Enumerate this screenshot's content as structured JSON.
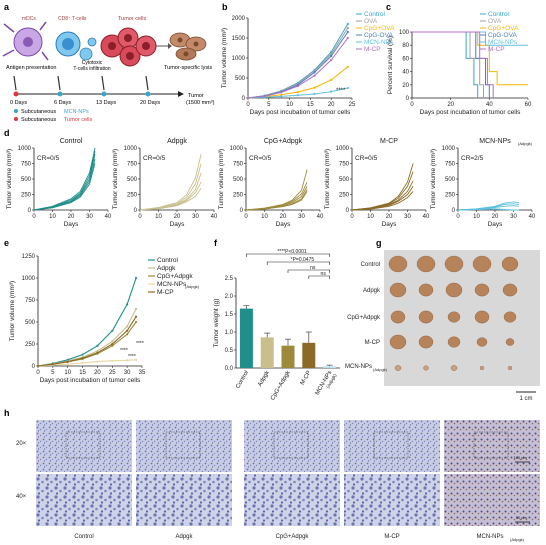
{
  "panel_labels": {
    "a": "a",
    "b": "b",
    "c": "c",
    "d": "d",
    "e": "e",
    "f": "f",
    "g": "g",
    "h": "h"
  },
  "schematic": {
    "mdcs": "mDCs",
    "tcells": "CD8⁺ T-cells",
    "tumor_cells": "Tumor cells",
    "antigen": "Antigen presentation",
    "cytotoxic": "Cytotoxic\nT-cells infiltration",
    "lysis": "Tumor-specific lysis",
    "timeline": [
      "0 Days",
      "6 Days",
      "13 Days",
      "20 Days"
    ],
    "endpoint": "Tumor",
    "endpoint_vol": "(1500 mm³)",
    "legend1_label": "Subcutaneous",
    "legend1_item": "MCN-NPs",
    "legend2_label": "Subcutaneous",
    "legend2_item": "Tumor cells"
  },
  "colors": {
    "control": "#3aa6c9",
    "ova": "#a0a0a0",
    "cpg_ova": "#f5b700",
    "cpgova": "#4a7fc1",
    "mcn": "#5ec0e0",
    "mcp": "#b070c0",
    "e_control": "#1f8f8a",
    "e_adpgk": "#c8bf8c",
    "e_cpg": "#9c8a3a",
    "e_mcn": "#e6d7a2",
    "e_mcp": "#8a6a26"
  },
  "legend_b": [
    "Control",
    "OVA",
    "CpG+OVA",
    "CpG-OVA",
    "MCN-NPs",
    "M-CP"
  ],
  "legend_e": [
    "Control",
    "Adpgk",
    "CpG+Adpgk",
    "MCN-NPs",
    "M-CP"
  ],
  "legend_e_sub": "(Adpgk)",
  "d_titles": [
    "Control",
    "Adpgk",
    "CpG+Adpgk",
    "M-CP",
    "MCN-NPs"
  ],
  "d_title_sub": "(Adpgk)",
  "d_cr": [
    "CR=0/5",
    "CR=0/5",
    "CR=0/5",
    "CR=0/5",
    "CR=2/5"
  ],
  "f_categories": [
    "Control",
    "Adpgk",
    "CpG+Adpgk",
    "M-CP",
    "MCN-NPs"
  ],
  "f_last_sub": "(Adpgk)",
  "f_sig": [
    "****P<0.0001",
    "*P=0.0475",
    "ns",
    "ns"
  ],
  "g_rows": [
    "Control",
    "Adpgk",
    "CpG+Adpgk",
    "M-CP",
    "MCN-NPs"
  ],
  "g_rows_sub": "(Adpgk)",
  "g_scale": "1 cm",
  "h_rows": [
    "20×",
    "40×"
  ],
  "h_cols": [
    "Control",
    "Adpgk",
    "CpG+Adpgk",
    "M-CP",
    "MCN-NPs"
  ],
  "h_last_sub": "(Adpgk)",
  "h_scale1": "100 μm",
  "h_scale2": "50 μm",
  "chart_data": [
    {
      "id": "b",
      "type": "line",
      "xlabel": "Days post incubation of tumor cells",
      "ylabel": "Tumor volume (mm³)",
      "xlim": [
        0,
        25
      ],
      "ylim": [
        0,
        2000
      ],
      "xticks": [
        0,
        5,
        10,
        15,
        20,
        25
      ],
      "yticks": [
        0,
        500,
        1000,
        1500,
        2000
      ],
      "annotation": "****",
      "series": [
        {
          "name": "Control",
          "x": [
            0,
            4,
            8,
            12,
            16,
            20,
            24
          ],
          "y": [
            0,
            60,
            180,
            380,
            700,
            1150,
            1850
          ]
        },
        {
          "name": "OVA",
          "x": [
            0,
            4,
            8,
            12,
            16,
            20,
            24
          ],
          "y": [
            0,
            55,
            170,
            360,
            680,
            1100,
            1750
          ]
        },
        {
          "name": "CpG+OVA",
          "x": [
            0,
            4,
            8,
            12,
            16,
            20,
            24
          ],
          "y": [
            0,
            30,
            80,
            150,
            260,
            450,
            780
          ]
        },
        {
          "name": "CpG-OVA",
          "x": [
            0,
            4,
            8,
            12,
            16,
            20,
            24
          ],
          "y": [
            0,
            50,
            150,
            330,
            640,
            1050,
            1650
          ]
        },
        {
          "name": "MCN-NPs",
          "x": [
            0,
            4,
            8,
            12,
            16,
            20,
            24
          ],
          "y": [
            0,
            20,
            40,
            70,
            100,
            160,
            250
          ]
        },
        {
          "name": "M-CP",
          "x": [
            0,
            4,
            8,
            12,
            16,
            20,
            24
          ],
          "y": [
            0,
            45,
            140,
            300,
            560,
            950,
            1500
          ]
        }
      ]
    },
    {
      "id": "c",
      "type": "line",
      "xlabel": "Days post incubation of tumor cells",
      "ylabel": "Percent survival (%)",
      "xlim": [
        0,
        60
      ],
      "ylim": [
        0,
        100
      ],
      "xticks": [
        0,
        20,
        40,
        60
      ],
      "yticks": [
        0,
        20,
        40,
        60,
        80,
        100
      ],
      "series": [
        {
          "name": "Control",
          "x": [
            0,
            28,
            28,
            32,
            32,
            34,
            34
          ],
          "y": [
            100,
            100,
            60,
            60,
            20,
            20,
            0
          ]
        },
        {
          "name": "OVA",
          "x": [
            0,
            30,
            30,
            35,
            35,
            37,
            37
          ],
          "y": [
            100,
            100,
            60,
            60,
            20,
            20,
            0
          ]
        },
        {
          "name": "CpG+OVA",
          "x": [
            0,
            34,
            34,
            40,
            40,
            44,
            44,
            60
          ],
          "y": [
            100,
            100,
            80,
            80,
            40,
            40,
            20,
            20
          ]
        },
        {
          "name": "CpG-OVA",
          "x": [
            0,
            33,
            33,
            38,
            38,
            40,
            40
          ],
          "y": [
            100,
            100,
            60,
            60,
            20,
            20,
            0
          ]
        },
        {
          "name": "MCN-NPs",
          "x": [
            0,
            38,
            38,
            60
          ],
          "y": [
            100,
            100,
            80,
            80
          ]
        },
        {
          "name": "M-CP",
          "x": [
            0,
            35,
            35,
            39,
            39,
            42,
            42
          ],
          "y": [
            100,
            100,
            60,
            60,
            20,
            20,
            0
          ]
        }
      ]
    },
    {
      "id": "d",
      "type": "line",
      "xlabel": "Days",
      "ylabel": "Tumor volume (mm³)",
      "xlim": [
        0,
        40
      ],
      "ylim": [
        0,
        1000
      ],
      "xticks": [
        0,
        10,
        20,
        30,
        40
      ],
      "yticks": [
        0,
        250,
        500,
        750,
        1000
      ],
      "panels": [
        {
          "name": "Control",
          "curves": [
            {
              "x": [
                0,
                10,
                20,
                25,
                30,
                33
              ],
              "y": [
                0,
                60,
                180,
                300,
                600,
                1000
              ]
            },
            {
              "x": [
                0,
                10,
                20,
                25,
                30,
                33
              ],
              "y": [
                0,
                50,
                160,
                270,
                550,
                950
              ]
            },
            {
              "x": [
                0,
                10,
                20,
                25,
                30,
                33
              ],
              "y": [
                0,
                45,
                140,
                250,
                500,
                900
              ]
            },
            {
              "x": [
                0,
                10,
                20,
                25,
                30,
                33
              ],
              "y": [
                0,
                40,
                130,
                230,
                460,
                820
              ]
            },
            {
              "x": [
                0,
                10,
                20,
                25,
                30,
                33
              ],
              "y": [
                0,
                35,
                120,
                210,
                420,
                750
              ]
            }
          ]
        },
        {
          "name": "Adpgk",
          "curves": [
            {
              "x": [
                0,
                10,
                20,
                25,
                30,
                33
              ],
              "y": [
                0,
                40,
                120,
                240,
                520,
                900
              ]
            },
            {
              "x": [
                0,
                10,
                20,
                25,
                30,
                33
              ],
              "y": [
                0,
                35,
                100,
                200,
                420,
                750
              ]
            },
            {
              "x": [
                0,
                10,
                20,
                25,
                30,
                33
              ],
              "y": [
                0,
                30,
                90,
                170,
                330,
                600
              ]
            },
            {
              "x": [
                0,
                10,
                20,
                25,
                30,
                33
              ],
              "y": [
                0,
                25,
                80,
                150,
                280,
                450
              ]
            },
            {
              "x": [
                0,
                10,
                20,
                25,
                30,
                33
              ],
              "y": [
                0,
                20,
                70,
                130,
                220,
                350
              ]
            }
          ]
        },
        {
          "name": "CpG+Adpgk",
          "curves": [
            {
              "x": [
                0,
                10,
                20,
                25,
                30,
                33
              ],
              "y": [
                0,
                30,
                90,
                160,
                320,
                650
              ]
            },
            {
              "x": [
                0,
                10,
                20,
                25,
                30,
                33
              ],
              "y": [
                0,
                25,
                80,
                140,
                260,
                450
              ]
            },
            {
              "x": [
                0,
                10,
                20,
                25,
                30,
                33
              ],
              "y": [
                0,
                20,
                70,
                120,
                220,
                380
              ]
            },
            {
              "x": [
                0,
                10,
                20,
                25,
                30,
                33
              ],
              "y": [
                0,
                18,
                60,
                100,
                180,
                330
              ]
            },
            {
              "x": [
                0,
                10,
                20,
                25,
                30,
                33
              ],
              "y": [
                0,
                15,
                55,
                90,
                160,
                300
              ]
            }
          ]
        },
        {
          "name": "M-CP",
          "curves": [
            {
              "x": [
                0,
                10,
                20,
                25,
                30,
                33
              ],
              "y": [
                0,
                35,
                110,
                220,
                450,
                750
              ]
            },
            {
              "x": [
                0,
                10,
                20,
                25,
                30,
                33
              ],
              "y": [
                0,
                30,
                100,
                190,
                380,
                620
              ]
            },
            {
              "x": [
                0,
                10,
                20,
                25,
                30,
                33
              ],
              "y": [
                0,
                25,
                85,
                160,
                300,
                470
              ]
            },
            {
              "x": [
                0,
                10,
                20,
                25,
                30,
                33
              ],
              "y": [
                0,
                20,
                75,
                140,
                250,
                380
              ]
            },
            {
              "x": [
                0,
                10,
                20,
                25,
                30,
                33
              ],
              "y": [
                0,
                15,
                60,
                110,
                200,
                300
              ]
            }
          ]
        },
        {
          "name": "MCN-NPs",
          "curves": [
            {
              "x": [
                0,
                10,
                20,
                25,
                30,
                33
              ],
              "y": [
                0,
                20,
                60,
                110,
                130,
                120
              ]
            },
            {
              "x": [
                0,
                10,
                20,
                25,
                30,
                33
              ],
              "y": [
                0,
                15,
                50,
                90,
                100,
                90
              ]
            },
            {
              "x": [
                0,
                10,
                20,
                25,
                30,
                33
              ],
              "y": [
                0,
                12,
                40,
                60,
                70,
                60
              ]
            },
            {
              "x": [
                0,
                10,
                20,
                25,
                30,
                33
              ],
              "y": [
                0,
                10,
                20,
                10,
                0,
                0
              ]
            },
            {
              "x": [
                0,
                10,
                20,
                25,
                30,
                33
              ],
              "y": [
                0,
                8,
                15,
                5,
                0,
                0
              ]
            }
          ]
        }
      ]
    },
    {
      "id": "e",
      "type": "line",
      "xlabel": "Days post incubation of tumor cells",
      "ylabel": "Tumor volume (mm³)",
      "xlim": [
        0,
        35
      ],
      "ylim": [
        0,
        1250
      ],
      "xticks": [
        0,
        5,
        10,
        15,
        20,
        25,
        30,
        35
      ],
      "yticks": [
        0,
        250,
        500,
        750,
        1000,
        1250
      ],
      "annotations": [
        "****",
        "****",
        "****"
      ],
      "series": [
        {
          "name": "Control",
          "x": [
            0,
            5,
            10,
            15,
            20,
            25,
            30,
            33
          ],
          "y": [
            0,
            30,
            70,
            130,
            230,
            400,
            700,
            1000
          ]
        },
        {
          "name": "Adpgk",
          "x": [
            0,
            5,
            10,
            15,
            20,
            25,
            30,
            33
          ],
          "y": [
            0,
            25,
            55,
            100,
            170,
            280,
            450,
            650
          ]
        },
        {
          "name": "CpG+Adpgk",
          "x": [
            0,
            5,
            10,
            15,
            20,
            25,
            30,
            33
          ],
          "y": [
            0,
            20,
            45,
            80,
            140,
            230,
            360,
            500
          ]
        },
        {
          "name": "MCN-NPs",
          "x": [
            0,
            5,
            10,
            15,
            20,
            25,
            30,
            33
          ],
          "y": [
            0,
            10,
            20,
            35,
            50,
            60,
            65,
            70
          ]
        },
        {
          "name": "M-CP",
          "x": [
            0,
            5,
            10,
            15,
            20,
            25,
            30,
            33
          ],
          "y": [
            0,
            20,
            50,
            90,
            150,
            250,
            400,
            560
          ]
        }
      ]
    },
    {
      "id": "f",
      "type": "bar",
      "ylabel": "Tumor weight (g)",
      "ylim": [
        0,
        2.5
      ],
      "yticks": [
        0.0,
        0.5,
        1.0,
        1.5,
        2.0,
        2.5
      ],
      "categories": [
        "Control",
        "Adpgk",
        "CpG+Adpgk",
        "M-CP",
        "MCN-NPs"
      ],
      "values": [
        1.65,
        0.85,
        0.62,
        0.7,
        0.05
      ],
      "errors": [
        0.08,
        0.12,
        0.18,
        0.3,
        0.03
      ],
      "colors": [
        "#1f8f8a",
        "#c8bf8c",
        "#9c8a3a",
        "#8a6a26",
        "#bfe3ee"
      ]
    }
  ]
}
